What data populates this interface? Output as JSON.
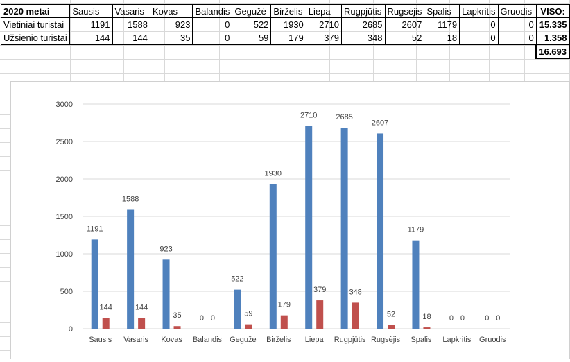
{
  "table": {
    "corner": "2020 metai",
    "months": [
      "Sausis",
      "Vasaris",
      "Kovas",
      "Balandis",
      "Gegužė",
      "Birželis",
      "Liepa",
      "Rugpjūtis",
      "Rugsėjis",
      "Spalis",
      "Lapkritis",
      "Gruodis"
    ],
    "total_header": "VISO:",
    "rows": [
      {
        "label": "Vietiniai turistai",
        "values": [
          "1191",
          "1588",
          "923",
          "0",
          "522",
          "1930",
          "2710",
          "2685",
          "2607",
          "1179",
          "0",
          "0"
        ],
        "total": "15.335"
      },
      {
        "label": "Užsienio turistai",
        "values": [
          "144",
          "144",
          "35",
          "0",
          "59",
          "179",
          "379",
          "348",
          "52",
          "18",
          "0",
          "0"
        ],
        "total": "1.358"
      }
    ],
    "grand_total": "16.693"
  },
  "chart_data": {
    "type": "bar",
    "categories": [
      "Sausis",
      "Vasaris",
      "Kovas",
      "Balandis",
      "Gegužė",
      "Birželis",
      "Liepa",
      "Rugpjūtis",
      "Rugsėjis",
      "Spalis",
      "Lapkritis",
      "Gruodis"
    ],
    "series": [
      {
        "values": [
          1191,
          1588,
          923,
          0,
          522,
          1930,
          2710,
          2685,
          2607,
          1179,
          0,
          0
        ],
        "color": "#4f81bd"
      },
      {
        "values": [
          144,
          144,
          35,
          0,
          59,
          179,
          379,
          348,
          52,
          18,
          0,
          0
        ],
        "color": "#c0504d"
      }
    ],
    "ylim": [
      0,
      3000
    ],
    "yticks": [
      0,
      500,
      1000,
      1500,
      2000,
      2500,
      3000
    ],
    "grid": true,
    "data_labels": true
  }
}
